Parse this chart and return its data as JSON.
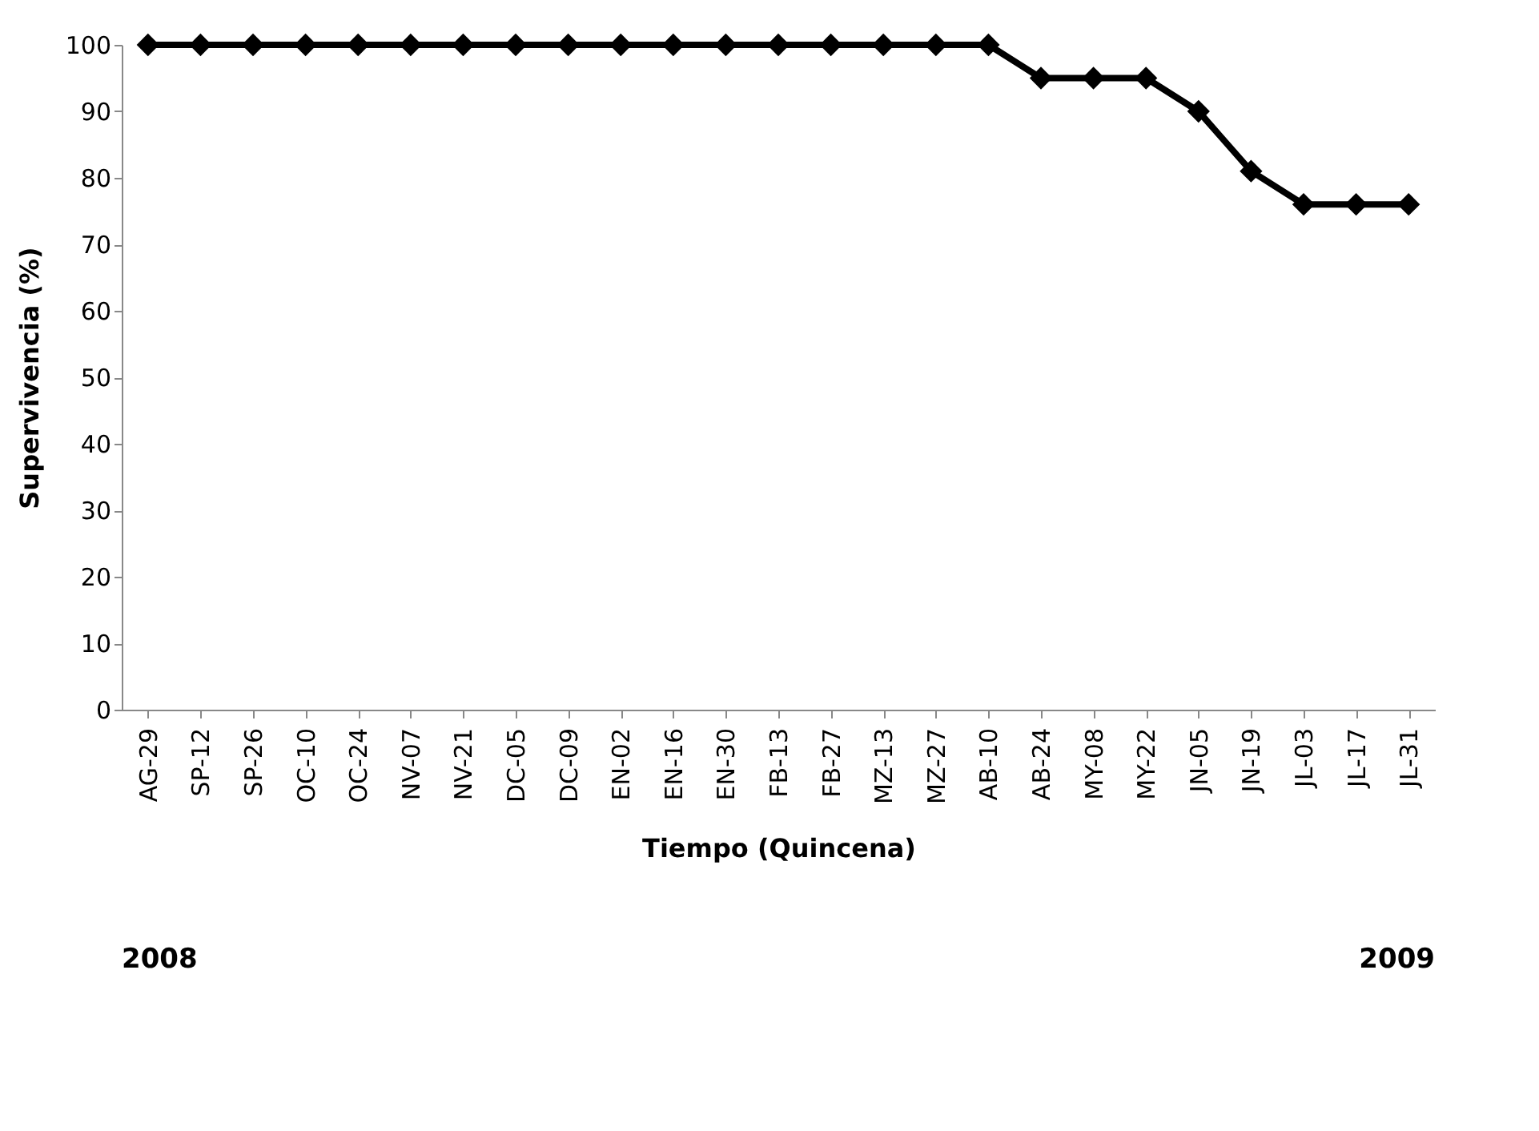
{
  "chart_data": {
    "type": "line",
    "xlabel": "Tiempo (Quincena)",
    "ylabel": "Supervivencia  (%)",
    "categories": [
      "AG-29",
      "SP-12",
      "SP-26",
      "OC-10",
      "OC-24",
      "NV-07",
      "NV-21",
      "DC-05",
      "DC-09",
      "EN-02",
      "EN-16",
      "EN-30",
      "FB-13",
      "FB-27",
      "MZ-13",
      "MZ-27",
      "AB-10",
      "AB-24",
      "MY-08",
      "MY-22",
      "JN-05",
      "JN-19",
      "JL-03",
      "JL-17",
      "JL-31"
    ],
    "series": [
      {
        "color": "#000000",
        "values": [
          100,
          100,
          100,
          100,
          100,
          100,
          100,
          100,
          100,
          100,
          100,
          100,
          100,
          100,
          100,
          100,
          100,
          95,
          95,
          95,
          90,
          81,
          76,
          76,
          76
        ]
      }
    ],
    "ylim": [
      0,
      100
    ],
    "yticks": [
      0,
      10,
      20,
      30,
      40,
      50,
      60,
      70,
      80,
      90,
      100
    ],
    "marker": "diamond",
    "line_style": "solid",
    "grid": false,
    "annotations": [
      "2008",
      "2009"
    ]
  }
}
